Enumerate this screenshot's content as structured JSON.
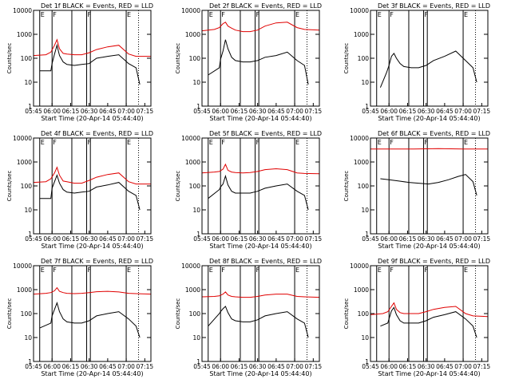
{
  "figure": {
    "x_tick_labels": [
      "05:45",
      "06:00",
      "06:15",
      "06:30",
      "06:45",
      "07:00",
      "07:15"
    ],
    "y_tick_labels": [
      "1",
      "10",
      "100",
      "1000",
      "10000"
    ],
    "xlabel": "Start Time (20-Apr-14 05:44:40)",
    "ylabel": "Counts/sec",
    "colors": {
      "events": "#000000",
      "lld": "#e00000",
      "axes": "#000000"
    },
    "region_flags": [
      "E",
      "F",
      "F",
      "E"
    ]
  },
  "chart_data": [
    {
      "type": "line",
      "title": "Det 1f BLACK = Events, RED = LLD",
      "xlabel": "Start Time (20-Apr-14 05:44:40)",
      "ylabel": "Counts/sec",
      "x_range_min": [
        345,
        440
      ],
      "ylim": [
        1,
        10000
      ],
      "y_scale": "log",
      "series": [
        {
          "name": "Events",
          "color": "#000000",
          "x_min": [
            350,
            359,
            360,
            362,
            364,
            366,
            369,
            372,
            378,
            384,
            390,
            396,
            405,
            414,
            422,
            428,
            431
          ],
          "y": [
            30,
            30,
            60,
            150,
            350,
            130,
            70,
            55,
            50,
            55,
            60,
            100,
            120,
            140,
            60,
            40,
            8
          ]
        },
        {
          "name": "LLD",
          "color": "#e00000",
          "x_min": [
            345,
            355,
            359,
            362,
            364,
            366,
            369,
            372,
            378,
            384,
            390,
            396,
            405,
            414,
            422,
            428,
            440
          ],
          "y": [
            130,
            140,
            180,
            350,
            600,
            250,
            160,
            150,
            140,
            140,
            170,
            230,
            300,
            350,
            150,
            120,
            120
          ]
        }
      ]
    },
    {
      "type": "line",
      "title": "Det 2f BLACK = Events, RED = LLD",
      "xlabel": "Start Time (20-Apr-14 05:44:40)",
      "ylabel": "Counts/sec",
      "x_range_min": [
        345,
        440
      ],
      "ylim": [
        1,
        10000
      ],
      "y_scale": "log",
      "series": [
        {
          "name": "Events",
          "color": "#000000",
          "x_min": [
            350,
            359,
            360,
            362,
            364,
            366,
            369,
            372,
            378,
            384,
            390,
            396,
            405,
            414,
            422,
            428,
            431
          ],
          "y": [
            20,
            40,
            90,
            200,
            600,
            250,
            110,
            80,
            70,
            70,
            80,
            110,
            130,
            180,
            80,
            50,
            8
          ]
        },
        {
          "name": "LLD",
          "color": "#e00000",
          "x_min": [
            345,
            355,
            359,
            362,
            364,
            366,
            369,
            372,
            378,
            384,
            390,
            396,
            405,
            414,
            422,
            428,
            440
          ],
          "y": [
            1400,
            1600,
            1900,
            2800,
            3200,
            2200,
            1800,
            1500,
            1300,
            1300,
            1500,
            2200,
            3000,
            3200,
            1900,
            1600,
            1500
          ]
        }
      ]
    },
    {
      "type": "line",
      "title": "Det 3f BLACK = Events, RED = LLD",
      "xlabel": "Start Time (20-Apr-14 05:44:40)",
      "ylabel": "Counts/sec",
      "x_range_min": [
        345,
        440
      ],
      "ylim": [
        1,
        10000
      ],
      "y_scale": "log",
      "series": [
        {
          "name": "Events",
          "color": "#000000",
          "x_min": [
            353,
            358,
            360,
            362,
            364,
            366,
            369,
            372,
            378,
            384,
            390,
            396,
            405,
            414,
            422,
            428,
            431
          ],
          "y": [
            6,
            25,
            50,
            120,
            160,
            100,
            60,
            45,
            40,
            40,
            50,
            80,
            120,
            200,
            80,
            40,
            10
          ]
        },
        {
          "name": "LLD",
          "color": "#e00000",
          "x_min": [
            345,
            360,
            380,
            400,
            420,
            440
          ],
          "y": [
            10000,
            10000,
            10000,
            10000,
            10000,
            10000
          ]
        }
      ]
    },
    {
      "type": "line",
      "title": "Det 4f BLACK = Events, RED = LLD",
      "xlabel": "Start Time (20-Apr-14 05:44:40)",
      "ylabel": "Counts/sec",
      "x_range_min": [
        345,
        440
      ],
      "ylim": [
        1,
        10000
      ],
      "y_scale": "log",
      "series": [
        {
          "name": "Events",
          "color": "#000000",
          "x_min": [
            350,
            359,
            360,
            362,
            364,
            366,
            369,
            372,
            378,
            384,
            390,
            396,
            405,
            414,
            422,
            428,
            431
          ],
          "y": [
            30,
            30,
            80,
            150,
            280,
            130,
            70,
            55,
            50,
            55,
            60,
            90,
            110,
            140,
            60,
            40,
            10
          ]
        },
        {
          "name": "LLD",
          "color": "#e00000",
          "x_min": [
            345,
            355,
            359,
            362,
            364,
            366,
            369,
            372,
            378,
            384,
            390,
            396,
            405,
            414,
            422,
            428,
            440
          ],
          "y": [
            140,
            150,
            200,
            350,
            600,
            280,
            160,
            150,
            130,
            130,
            170,
            230,
            300,
            350,
            150,
            120,
            120
          ]
        }
      ]
    },
    {
      "type": "line",
      "title": "Det 5f BLACK = Events, RED = LLD",
      "xlabel": "Start Time (20-Apr-14 05:44:40)",
      "ylabel": "Counts/sec",
      "x_range_min": [
        345,
        440
      ],
      "ylim": [
        1,
        10000
      ],
      "y_scale": "log",
      "series": [
        {
          "name": "Events",
          "color": "#000000",
          "x_min": [
            350,
            359,
            360,
            362,
            364,
            366,
            369,
            372,
            378,
            384,
            390,
            396,
            405,
            414,
            422,
            428,
            431
          ],
          "y": [
            30,
            70,
            90,
            120,
            260,
            110,
            60,
            50,
            50,
            50,
            60,
            80,
            100,
            120,
            60,
            40,
            10
          ]
        },
        {
          "name": "LLD",
          "color": "#e00000",
          "x_min": [
            345,
            355,
            359,
            362,
            364,
            366,
            369,
            372,
            378,
            384,
            390,
            396,
            405,
            414,
            422,
            428,
            440
          ],
          "y": [
            350,
            380,
            400,
            500,
            800,
            450,
            380,
            360,
            350,
            360,
            400,
            480,
            520,
            480,
            350,
            330,
            320
          ]
        }
      ]
    },
    {
      "type": "line",
      "title": "Det 6f BLACK = Events, RED = LLD",
      "xlabel": "Start Time (20-Apr-14 05:44:40)",
      "ylabel": "Counts/sec",
      "x_range_min": [
        345,
        440
      ],
      "ylim": [
        1,
        10000
      ],
      "y_scale": "log",
      "series": [
        {
          "name": "Events",
          "color": "#000000",
          "x_min": [
            353,
            360,
            368,
            376,
            384,
            392,
            400,
            408,
            416,
            422,
            428,
            431
          ],
          "y": [
            200,
            180,
            160,
            140,
            130,
            120,
            140,
            180,
            250,
            300,
            150,
            40
          ]
        },
        {
          "name": "LLD",
          "color": "#e00000",
          "x_min": [
            345,
            360,
            380,
            400,
            420,
            440
          ],
          "y": [
            3500,
            3500,
            3500,
            3600,
            3500,
            3500
          ]
        }
      ]
    },
    {
      "type": "line",
      "title": "Det 7f BLACK = Events, RED = LLD",
      "xlabel": "Start Time (20-Apr-14 05:44:40)",
      "ylabel": "Counts/sec",
      "x_range_min": [
        345,
        440
      ],
      "ylim": [
        1,
        10000
      ],
      "y_scale": "log",
      "series": [
        {
          "name": "Events",
          "color": "#000000",
          "x_min": [
            350,
            359,
            360,
            362,
            364,
            366,
            369,
            372,
            378,
            384,
            390,
            396,
            405,
            414,
            422,
            428,
            431
          ],
          "y": [
            25,
            40,
            80,
            150,
            280,
            120,
            60,
            45,
            40,
            40,
            50,
            80,
            100,
            120,
            60,
            30,
            10
          ]
        },
        {
          "name": "LLD",
          "color": "#e00000",
          "x_min": [
            345,
            355,
            359,
            362,
            364,
            366,
            369,
            372,
            378,
            384,
            390,
            396,
            405,
            414,
            422,
            428,
            440
          ],
          "y": [
            650,
            700,
            750,
            900,
            1200,
            850,
            750,
            700,
            680,
            700,
            750,
            820,
            850,
            800,
            700,
            680,
            650
          ]
        }
      ]
    },
    {
      "type": "line",
      "title": "Det 8f BLACK = Events, RED = LLD",
      "xlabel": "Start Time (20-Apr-14 05:44:40)",
      "ylabel": "Counts/sec",
      "x_range_min": [
        345,
        440
      ],
      "ylim": [
        1,
        10000
      ],
      "y_scale": "log",
      "series": [
        {
          "name": "Events",
          "color": "#000000",
          "x_min": [
            350,
            359,
            360,
            362,
            364,
            366,
            369,
            372,
            378,
            384,
            390,
            396,
            405,
            414,
            422,
            428,
            431
          ],
          "y": [
            30,
            100,
            120,
            160,
            200,
            110,
            60,
            50,
            45,
            45,
            55,
            80,
            100,
            120,
            60,
            40,
            10
          ]
        },
        {
          "name": "LLD",
          "color": "#e00000",
          "x_min": [
            345,
            355,
            359,
            362,
            364,
            366,
            369,
            372,
            378,
            384,
            390,
            396,
            405,
            414,
            422,
            428,
            440
          ],
          "y": [
            500,
            520,
            550,
            650,
            800,
            600,
            520,
            500,
            480,
            480,
            520,
            600,
            650,
            650,
            520,
            500,
            480
          ]
        }
      ]
    },
    {
      "type": "line",
      "title": "Det 9f BLACK = Events, RED = LLD",
      "xlabel": "Start Time (20-Apr-14 05:44:40)",
      "ylabel": "Counts/sec",
      "x_range_min": [
        345,
        440
      ],
      "ylim": [
        1,
        10000
      ],
      "y_scale": "log",
      "series": [
        {
          "name": "Events",
          "color": "#000000",
          "x_min": [
            353,
            359,
            360,
            362,
            364,
            366,
            369,
            372,
            378,
            384,
            390,
            396,
            405,
            414,
            422,
            428,
            431
          ],
          "y": [
            30,
            40,
            60,
            130,
            180,
            90,
            50,
            40,
            40,
            40,
            50,
            70,
            90,
            120,
            60,
            30,
            10
          ]
        },
        {
          "name": "LLD",
          "color": "#e00000",
          "x_min": [
            345,
            355,
            359,
            362,
            364,
            366,
            369,
            372,
            378,
            384,
            390,
            396,
            405,
            414,
            422,
            428,
            440
          ],
          "y": [
            90,
            100,
            120,
            200,
            280,
            150,
            110,
            100,
            100,
            100,
            120,
            150,
            180,
            200,
            100,
            80,
            75
          ]
        }
      ]
    }
  ]
}
